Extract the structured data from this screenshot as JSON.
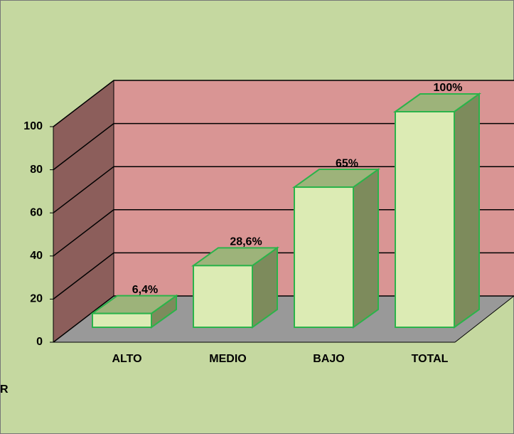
{
  "chart_data": {
    "type": "bar3d",
    "categories": [
      "ALTO",
      "MEDIO",
      "BAJO",
      "TOTAL"
    ],
    "values": [
      6.4,
      28.6,
      65,
      100
    ],
    "value_labels": [
      "6,4%",
      "28,6%",
      "65%",
      "100%"
    ],
    "ylim": [
      0,
      100
    ],
    "yticks": [
      0,
      20,
      40,
      60,
      80,
      100
    ],
    "grid": true,
    "colors": {
      "front": "#dcebb4",
      "top": "#9db37a",
      "side": "#7d8b5c",
      "edge": "#2bb34a",
      "back_wall": "#d99594",
      "side_wall": "#8c5e5b",
      "floor": "#999999",
      "background": "#c5d8a0"
    },
    "annotations": [
      "R"
    ]
  }
}
